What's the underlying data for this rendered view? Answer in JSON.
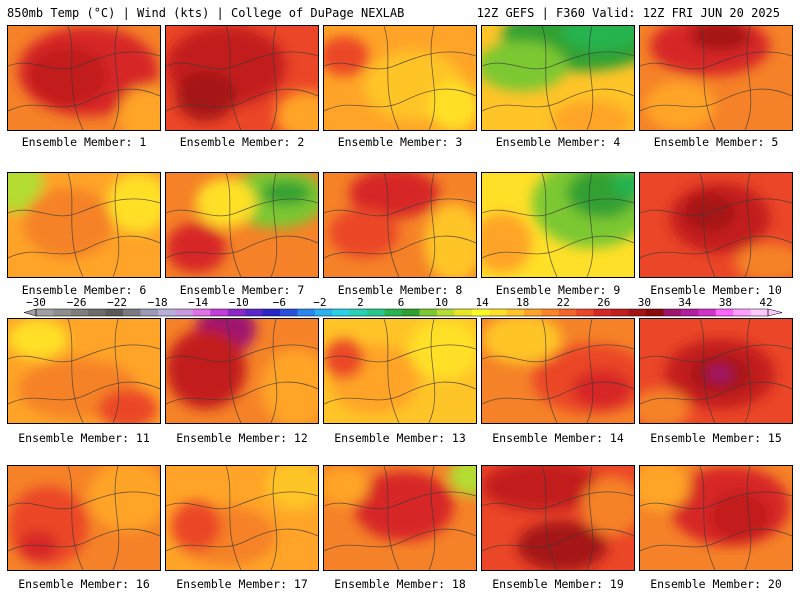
{
  "header": {
    "left": "850mb Temp (°C) | Wind (kts) | College of DuPage NEXLAB",
    "right": "12Z GEFS | F360 Valid: 12Z FRI JUN 20 2025"
  },
  "colorbar": {
    "labels": [
      "-30",
      "-26",
      "-22",
      "-18",
      "-14",
      "-10",
      "-6",
      "-2",
      "2",
      "6",
      "10",
      "14",
      "18",
      "22",
      "26",
      "30",
      "34",
      "38",
      "42"
    ],
    "colors": [
      "#a0a0a0",
      "#8f8f8f",
      "#7d7d7d",
      "#6c6c6c",
      "#5a5a5a",
      "#7a7a80",
      "#9a9ab4",
      "#b8b0d8",
      "#c79adf",
      "#e070e6",
      "#c33ed8",
      "#8c28c8",
      "#5a28c8",
      "#2828c8",
      "#2850dc",
      "#2888f0",
      "#28b4f0",
      "#28d2e6",
      "#28d2b4",
      "#28c88c",
      "#28b450",
      "#30a030",
      "#7cc832",
      "#b4dc32",
      "#e6e628",
      "#ffff28",
      "#ffe028",
      "#ffc428",
      "#ffa428",
      "#ff8428",
      "#f56428",
      "#eb4628",
      "#d72828",
      "#c31e1e",
      "#a51414",
      "#8c0a0a",
      "#a0146e",
      "#b41ea0",
      "#d232c8",
      "#ff64ff",
      "#ff9cff",
      "#ffc8ff"
    ]
  },
  "panels": [
    {
      "label": "Ensemble Member: 1",
      "base": "#f58228",
      "blobs": [
        [
          "#d72828",
          80,
          45,
          70,
          45
        ],
        [
          "#c31e1e",
          60,
          50,
          40,
          30
        ],
        [
          "#ffa428",
          140,
          90,
          30,
          30
        ]
      ]
    },
    {
      "label": "Ensemble Member: 2",
      "base": "#eb4628",
      "blobs": [
        [
          "#c31e1e",
          60,
          40,
          60,
          40
        ],
        [
          "#a51414",
          40,
          70,
          30,
          25
        ],
        [
          "#ffa428",
          140,
          90,
          30,
          25
        ]
      ]
    },
    {
      "label": "Ensemble Member: 3",
      "base": "#ffa428",
      "blobs": [
        [
          "#ffc428",
          90,
          60,
          50,
          35
        ],
        [
          "#eb4628",
          20,
          30,
          25,
          20
        ],
        [
          "#ffe028",
          130,
          80,
          25,
          25
        ]
      ]
    },
    {
      "label": "Ensemble Member: 4",
      "base": "#ffc428",
      "blobs": [
        [
          "#30a030",
          100,
          10,
          80,
          35
        ],
        [
          "#7cc832",
          40,
          40,
          45,
          25
        ],
        [
          "#28b450",
          120,
          5,
          40,
          20
        ],
        [
          "#ffa428",
          110,
          95,
          40,
          20
        ]
      ]
    },
    {
      "label": "Ensemble Member: 5",
      "base": "#f58228",
      "blobs": [
        [
          "#d72828",
          70,
          20,
          60,
          30
        ],
        [
          "#a51414",
          80,
          10,
          30,
          15
        ],
        [
          "#ffa428",
          40,
          80,
          35,
          25
        ]
      ]
    },
    {
      "label": "Ensemble Member: 6",
      "base": "#ffa428",
      "blobs": [
        [
          "#b4dc32",
          10,
          10,
          25,
          30
        ],
        [
          "#f58228",
          60,
          50,
          45,
          35
        ],
        [
          "#ffe028",
          130,
          30,
          30,
          30
        ]
      ]
    },
    {
      "label": "Ensemble Member: 7",
      "base": "#f58228",
      "blobs": [
        [
          "#7cc832",
          110,
          25,
          50,
          30
        ],
        [
          "#30a030",
          120,
          20,
          25,
          12
        ],
        [
          "#ffe028",
          60,
          30,
          30,
          25
        ],
        [
          "#d72828",
          30,
          75,
          30,
          25
        ]
      ]
    },
    {
      "label": "Ensemble Member: 8",
      "base": "#f58228",
      "blobs": [
        [
          "#d72828",
          70,
          20,
          45,
          25
        ],
        [
          "#ffc428",
          130,
          70,
          30,
          40
        ],
        [
          "#eb4628",
          40,
          60,
          35,
          25
        ]
      ]
    },
    {
      "label": "Ensemble Member: 9",
      "base": "#ffe028",
      "blobs": [
        [
          "#7cc832",
          110,
          30,
          60,
          45
        ],
        [
          "#30a030",
          120,
          20,
          35,
          25
        ],
        [
          "#28b450",
          150,
          10,
          20,
          15
        ],
        [
          "#ffa428",
          20,
          70,
          30,
          30
        ]
      ]
    },
    {
      "label": "Ensemble Member: 10",
      "base": "#eb4628",
      "blobs": [
        [
          "#c31e1e",
          80,
          45,
          50,
          35
        ],
        [
          "#a51414",
          70,
          40,
          25,
          18
        ],
        [
          "#f58228",
          130,
          90,
          35,
          20
        ]
      ]
    },
    {
      "label": "Ensemble Member: 11",
      "base": "#ffa428",
      "blobs": [
        [
          "#f58228",
          70,
          70,
          60,
          30
        ],
        [
          "#ffe028",
          30,
          20,
          30,
          20
        ],
        [
          "#eb4628",
          120,
          90,
          30,
          20
        ]
      ]
    },
    {
      "label": "Ensemble Member: 12",
      "base": "#f58228",
      "blobs": [
        [
          "#a0146e",
          60,
          10,
          30,
          25
        ],
        [
          "#c31e1e",
          40,
          50,
          40,
          40
        ],
        [
          "#ffa428",
          130,
          70,
          35,
          40
        ]
      ]
    },
    {
      "label": "Ensemble Member: 13",
      "base": "#ffc428",
      "blobs": [
        [
          "#ffa428",
          50,
          60,
          45,
          35
        ],
        [
          "#eb4628",
          20,
          40,
          20,
          20
        ],
        [
          "#ffe028",
          120,
          30,
          35,
          30
        ]
      ]
    },
    {
      "label": "Ensemble Member: 14",
      "base": "#f58228",
      "blobs": [
        [
          "#eb4628",
          110,
          60,
          60,
          35
        ],
        [
          "#ffc428",
          40,
          20,
          40,
          25
        ],
        [
          "#d72828",
          120,
          70,
          30,
          20
        ]
      ]
    },
    {
      "label": "Ensemble Member: 15",
      "base": "#eb4628",
      "blobs": [
        [
          "#c31e1e",
          80,
          55,
          55,
          35
        ],
        [
          "#a51414",
          80,
          55,
          30,
          18
        ],
        [
          "#a0146e",
          80,
          55,
          12,
          8
        ],
        [
          "#f58228",
          20,
          90,
          30,
          20
        ]
      ]
    },
    {
      "label": "Ensemble Member: 16",
      "base": "#f58228",
      "blobs": [
        [
          "#eb4628",
          40,
          60,
          40,
          40
        ],
        [
          "#ffa428",
          120,
          30,
          40,
          35
        ],
        [
          "#d72828",
          30,
          80,
          20,
          15
        ]
      ]
    },
    {
      "label": "Ensemble Member: 17",
      "base": "#ffa428",
      "blobs": [
        [
          "#f58228",
          60,
          70,
          50,
          30
        ],
        [
          "#eb4628",
          30,
          60,
          25,
          25
        ],
        [
          "#ffc428",
          130,
          20,
          30,
          25
        ]
      ]
    },
    {
      "label": "Ensemble Member: 18",
      "base": "#f58228",
      "blobs": [
        [
          "#d72828",
          80,
          40,
          50,
          35
        ],
        [
          "#b4dc32",
          150,
          10,
          25,
          20
        ],
        [
          "#ffa428",
          20,
          20,
          25,
          20
        ]
      ]
    },
    {
      "label": "Ensemble Member: 19",
      "base": "#eb4628",
      "blobs": [
        [
          "#c31e1e",
          60,
          20,
          60,
          25
        ],
        [
          "#a51414",
          80,
          80,
          45,
          25
        ],
        [
          "#f58228",
          130,
          40,
          30,
          30
        ]
      ]
    },
    {
      "label": "Ensemble Member: 20",
      "base": "#f58228",
      "blobs": [
        [
          "#d72828",
          90,
          40,
          60,
          40
        ],
        [
          "#c31e1e",
          100,
          50,
          30,
          25
        ],
        [
          "#ffa428",
          20,
          20,
          30,
          25
        ]
      ]
    }
  ]
}
